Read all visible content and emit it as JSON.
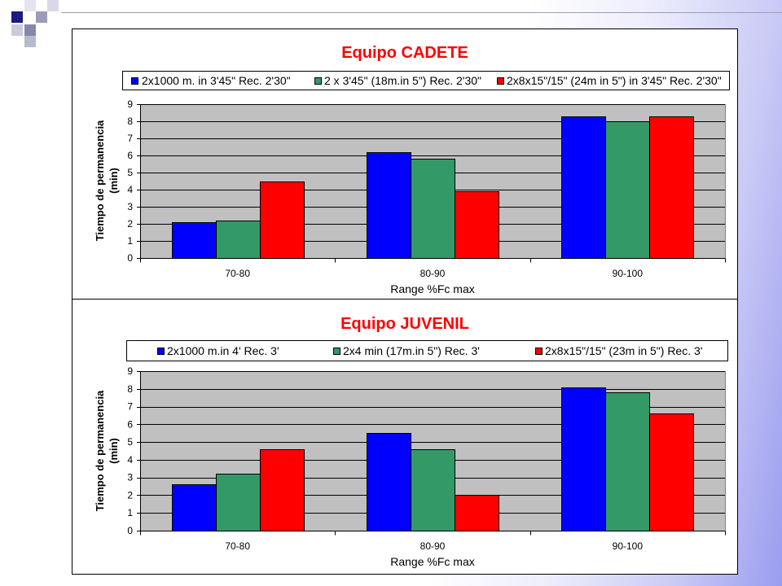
{
  "colors": {
    "title": "#ff0000",
    "plot_background": "#c0c0c0",
    "gridline": "#000000"
  },
  "chart_data": [
    {
      "type": "bar",
      "title": "Equipo CADETE",
      "xlabel": "Range %Fc max",
      "ylabel": [
        "Tiempo de permanencia",
        "(min)"
      ],
      "categories": [
        "70-80",
        "80-90",
        "90-100"
      ],
      "ylim": [
        0,
        9
      ],
      "yticks": [
        0,
        1,
        2,
        3,
        4,
        5,
        6,
        7,
        8,
        9
      ],
      "grid": true,
      "legend_position": "top",
      "series": [
        {
          "name": "2x1000 m. in 3'45\" Rec. 2'30\"",
          "color": "#0000ff",
          "values": [
            2.1,
            6.2,
            8.3
          ]
        },
        {
          "name": "2 x 3'45\" (18m.in 5\") Rec. 2'30\"",
          "color": "#339966",
          "values": [
            2.2,
            5.8,
            8.0
          ]
        },
        {
          "name": "2x8x15\"/15\" (24m in 5\") in 3'45\" Rec. 2'30\"",
          "color": "#ff0000",
          "values": [
            4.5,
            3.9,
            8.3
          ]
        }
      ]
    },
    {
      "type": "bar",
      "title": "Equipo JUVENIL",
      "xlabel": "Range %Fc max",
      "ylabel": [
        "Tiempo de permanencia",
        "(min)"
      ],
      "categories": [
        "70-80",
        "80-90",
        "90-100"
      ],
      "ylim": [
        0,
        9
      ],
      "yticks": [
        0,
        1,
        2,
        3,
        4,
        5,
        6,
        7,
        8,
        9
      ],
      "grid": true,
      "legend_position": "top",
      "series": [
        {
          "name": "2x1000 m.in 4' Rec. 3'",
          "color": "#0000ff",
          "values": [
            2.6,
            5.5,
            8.1
          ]
        },
        {
          "name": "2x4 min (17m.in 5\") Rec. 3'",
          "color": "#339966",
          "values": [
            3.2,
            4.6,
            7.8
          ]
        },
        {
          "name": "2x8x15\"/15\" (23m in 5\") Rec. 3'",
          "color": "#ff0000",
          "values": [
            4.6,
            2.0,
            6.6
          ]
        }
      ]
    }
  ]
}
